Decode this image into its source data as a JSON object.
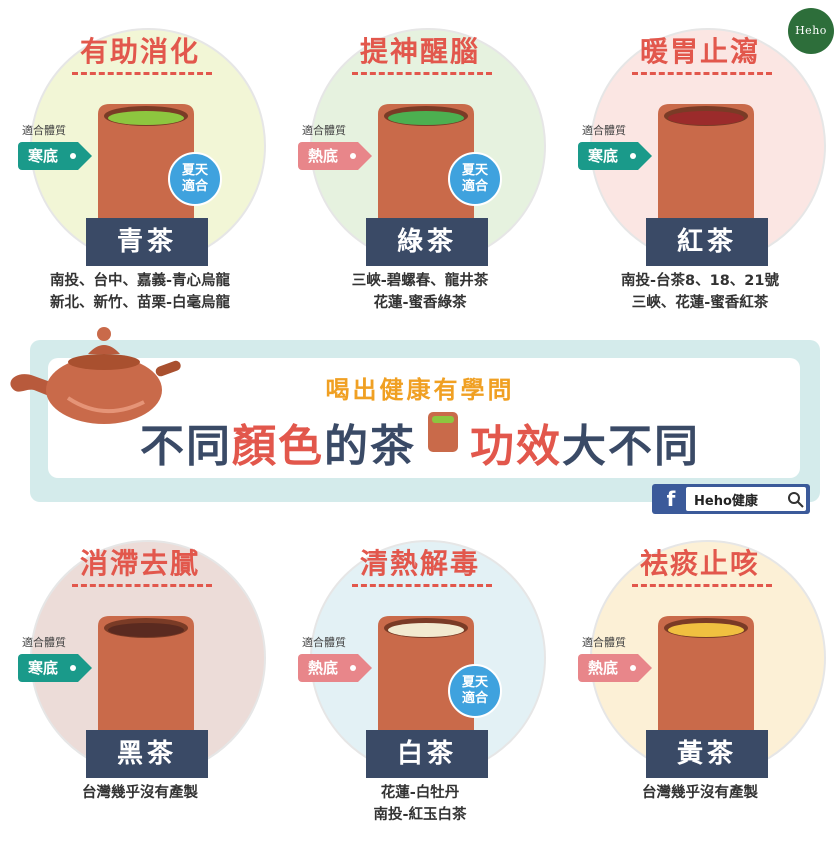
{
  "logo": "Heho",
  "banner": {
    "line1": "喝出健康有學問",
    "line2": [
      {
        "text": "不同",
        "color": "#3a4a66"
      },
      {
        "text": "顏色",
        "color": "#e2574c"
      },
      {
        "text": "的茶",
        "color": "#3a4a66"
      },
      {
        "text": "功效",
        "color": "#e2574c"
      },
      {
        "text": "大不同",
        "color": "#3a4a66"
      }
    ],
    "search_text": "Heho健康"
  },
  "colors": {
    "navy": "#3a4a66",
    "red": "#e2574c",
    "orange": "#f0a023",
    "teal_tag": "#1a9a8a",
    "pink_tag": "#e8868a",
    "summer_blue": "#3fa2de",
    "cup": "#c96a4a",
    "fb_blue": "#3b5a9a"
  },
  "constitution_caption": "適合體質",
  "summer_badge": [
    "夏天",
    "適合"
  ],
  "teas": [
    {
      "effect": "有助消化",
      "name": "青茶",
      "constitution": "寒底",
      "tag": "cold",
      "summer": true,
      "regions": [
        "南投、台中、嘉義-青心烏龍",
        "新北、新竹、苗栗-白毫烏龍"
      ],
      "circle_bg": "#f2f6d6",
      "liquid": "#8dc63f"
    },
    {
      "effect": "提神醒腦",
      "name": "綠茶",
      "constitution": "熱底",
      "tag": "hot",
      "summer": true,
      "regions": [
        "三峽-碧螺春、龍井茶",
        "花蓮-蜜香綠茶"
      ],
      "circle_bg": "#e6f2df",
      "liquid": "#4caf50"
    },
    {
      "effect": "暖胃止瀉",
      "name": "紅茶",
      "constitution": "寒底",
      "tag": "cold",
      "summer": false,
      "regions": [
        "南投-台茶8、18、21號",
        "三峽、花蓮-蜜香紅茶"
      ],
      "circle_bg": "#fbe6e3",
      "liquid": "#9b2b2b"
    },
    {
      "effect": "消滯去膩",
      "name": "黑茶",
      "constitution": "寒底",
      "tag": "cold",
      "summer": false,
      "regions": [
        "台灣幾乎沒有產製"
      ],
      "circle_bg": "#ecdcd8",
      "liquid": "#5a2a20"
    },
    {
      "effect": "清熱解毒",
      "name": "白茶",
      "constitution": "熱底",
      "tag": "hot",
      "summer": true,
      "regions": [
        "花蓮-白牡丹",
        "南投-紅玉白茶"
      ],
      "circle_bg": "#e3f1f5",
      "liquid": "#f2ead0"
    },
    {
      "effect": "祛痰止咳",
      "name": "黃茶",
      "constitution": "熱底",
      "tag": "hot",
      "summer": false,
      "regions": [
        "台灣幾乎沒有產製"
      ],
      "circle_bg": "#fcf0d6",
      "liquid": "#f0c040"
    }
  ]
}
